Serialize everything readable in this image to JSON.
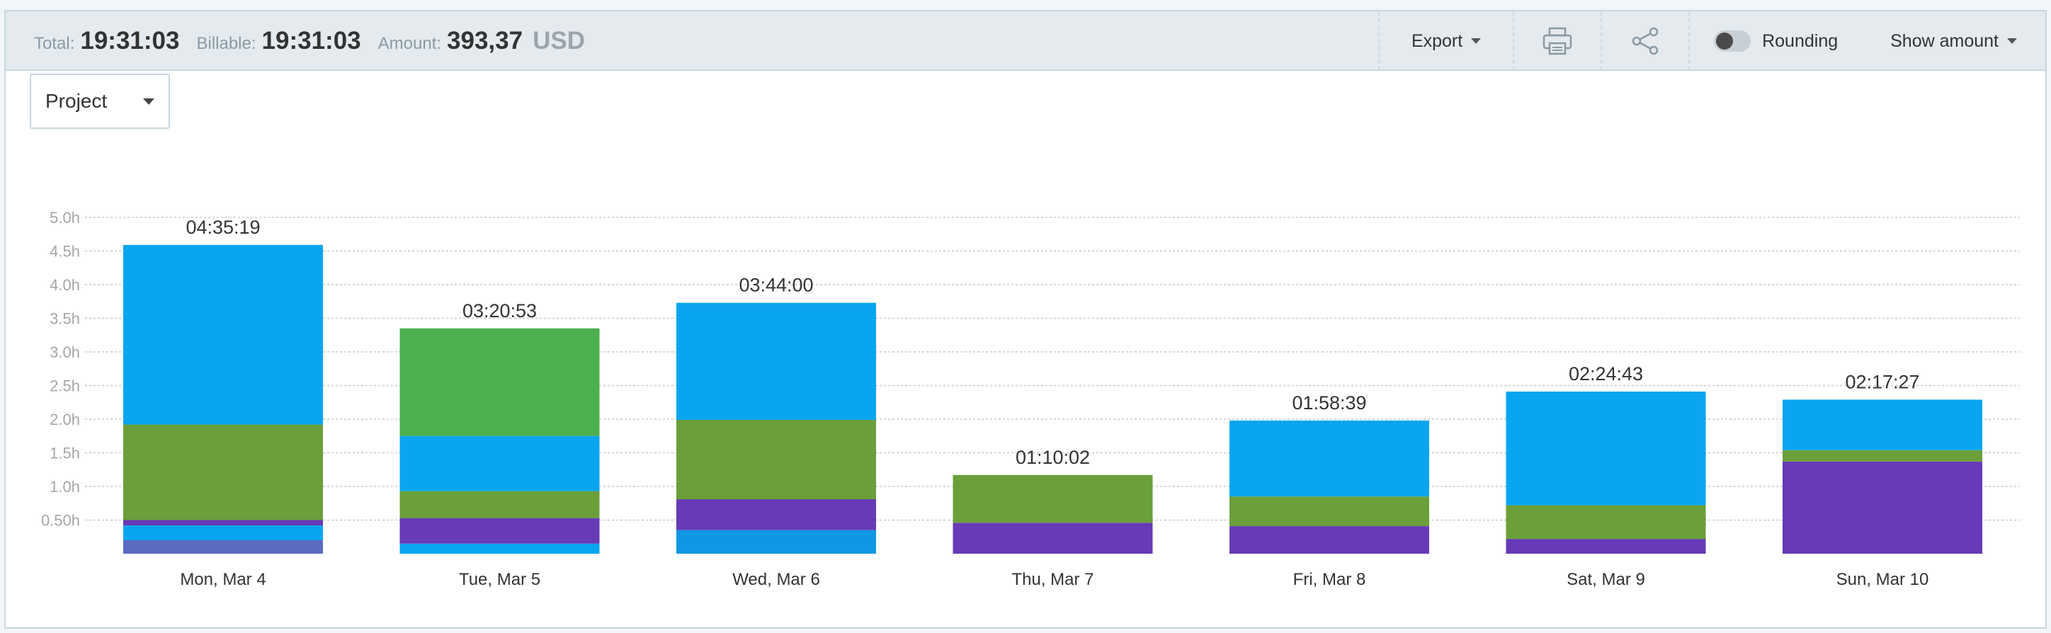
{
  "summary": {
    "total_label": "Total:",
    "total_value": "19:31:03",
    "billable_label": "Billable:",
    "billable_value": "19:31:03",
    "amount_label": "Amount:",
    "amount_value": "393,37",
    "amount_currency": "USD"
  },
  "toolbar": {
    "export_label": "Export",
    "print_icon": "printer-icon",
    "share_icon": "share-icon",
    "rounding_label": "Rounding",
    "rounding_on": false,
    "show_amount_label": "Show amount"
  },
  "group_by": {
    "selected": "Project"
  },
  "colors": {
    "blue": "#0aa5f0",
    "green": "#6a9f3a",
    "bright_green": "#4caf50",
    "purple": "#673ab7",
    "slate": "#5c6bc0",
    "deep_blue": "#0d97e4"
  },
  "chart_data": {
    "type": "bar",
    "stacked": true,
    "y_tick_labels": [
      "0.50h",
      "1.0h",
      "1.5h",
      "2.0h",
      "2.5h",
      "3.0h",
      "3.5h",
      "4.0h",
      "4.5h",
      "5.0h"
    ],
    "ylim": [
      0,
      5.0
    ],
    "grid": true,
    "categories": [
      "Mon, Mar 4",
      "Tue, Mar 5",
      "Wed, Mar 6",
      "Thu, Mar 7",
      "Fri, Mar 8",
      "Sat, Mar 9",
      "Sun, Mar 10"
    ],
    "totals": [
      "04:35:19",
      "03:20:53",
      "03:44:00",
      "01:10:02",
      "01:58:39",
      "02:24:43",
      "02:17:27"
    ],
    "stacks": [
      [
        [
          "#5c6bc0",
          0.2
        ],
        [
          "#0aa5f0",
          0.22
        ],
        [
          "#673ab7",
          0.08
        ],
        [
          "#6a9f3a",
          1.42
        ],
        [
          "#0aa5f0",
          2.67
        ]
      ],
      [
        [
          "#0aa5f0",
          0.15
        ],
        [
          "#673ab7",
          0.38
        ],
        [
          "#6a9f3a",
          0.4
        ],
        [
          "#0aa5f0",
          0.82
        ],
        [
          "#4caf50",
          1.6
        ]
      ],
      [
        [
          "#0d97e4",
          0.35
        ],
        [
          "#673ab7",
          0.46
        ],
        [
          "#6a9f3a",
          1.18
        ],
        [
          "#0aa5f0",
          1.74
        ]
      ],
      [
        [
          "#673ab7",
          0.46
        ],
        [
          "#6a9f3a",
          0.71
        ]
      ],
      [
        [
          "#673ab7",
          0.41
        ],
        [
          "#6a9f3a",
          0.44
        ],
        [
          "#0aa5f0",
          1.13
        ]
      ],
      [
        [
          "#673ab7",
          0.22
        ],
        [
          "#6a9f3a",
          0.5
        ],
        [
          "#0aa5f0",
          1.69
        ]
      ],
      [
        [
          "#673ab7",
          1.37
        ],
        [
          "#6a9f3a",
          0.17
        ],
        [
          "#0aa5f0",
          0.75
        ]
      ]
    ]
  }
}
